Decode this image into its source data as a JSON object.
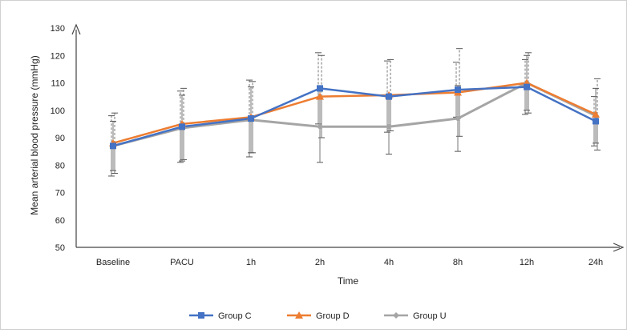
{
  "chart_data": {
    "type": "line",
    "title": "",
    "xlabel": "Time",
    "ylabel": "Mean arterial blood pressure (mmHg)",
    "ylim": [
      50,
      130
    ],
    "yticks": [
      50,
      60,
      70,
      80,
      90,
      100,
      110,
      120,
      130
    ],
    "grid": false,
    "legend_position": "bottom",
    "categories": [
      "Baseline",
      "PACU",
      "1h",
      "2h",
      "4h",
      "8h",
      "12h",
      "24h"
    ],
    "series": [
      {
        "name": "Group C",
        "color": "#4472c4",
        "marker": "square",
        "values": [
          87,
          94,
          97,
          108,
          105,
          107.5,
          108.5,
          96
        ],
        "error": [
          11,
          13,
          14,
          13,
          13,
          10,
          10,
          9
        ]
      },
      {
        "name": "Group D",
        "color": "#ed7d31",
        "marker": "triangle",
        "values": [
          88,
          95,
          97.5,
          105,
          105.5,
          106.5,
          110,
          98.5
        ],
        "error": [
          11,
          13,
          13,
          15,
          13,
          16,
          11,
          13
        ]
      },
      {
        "name": "Group U",
        "color": "#a5a5a5",
        "marker": "diamond",
        "values": [
          87,
          93.5,
          96.5,
          94,
          94,
          97,
          110,
          98
        ],
        "error": [
          9,
          12,
          12,
          13,
          10,
          12,
          10,
          10
        ]
      }
    ]
  }
}
